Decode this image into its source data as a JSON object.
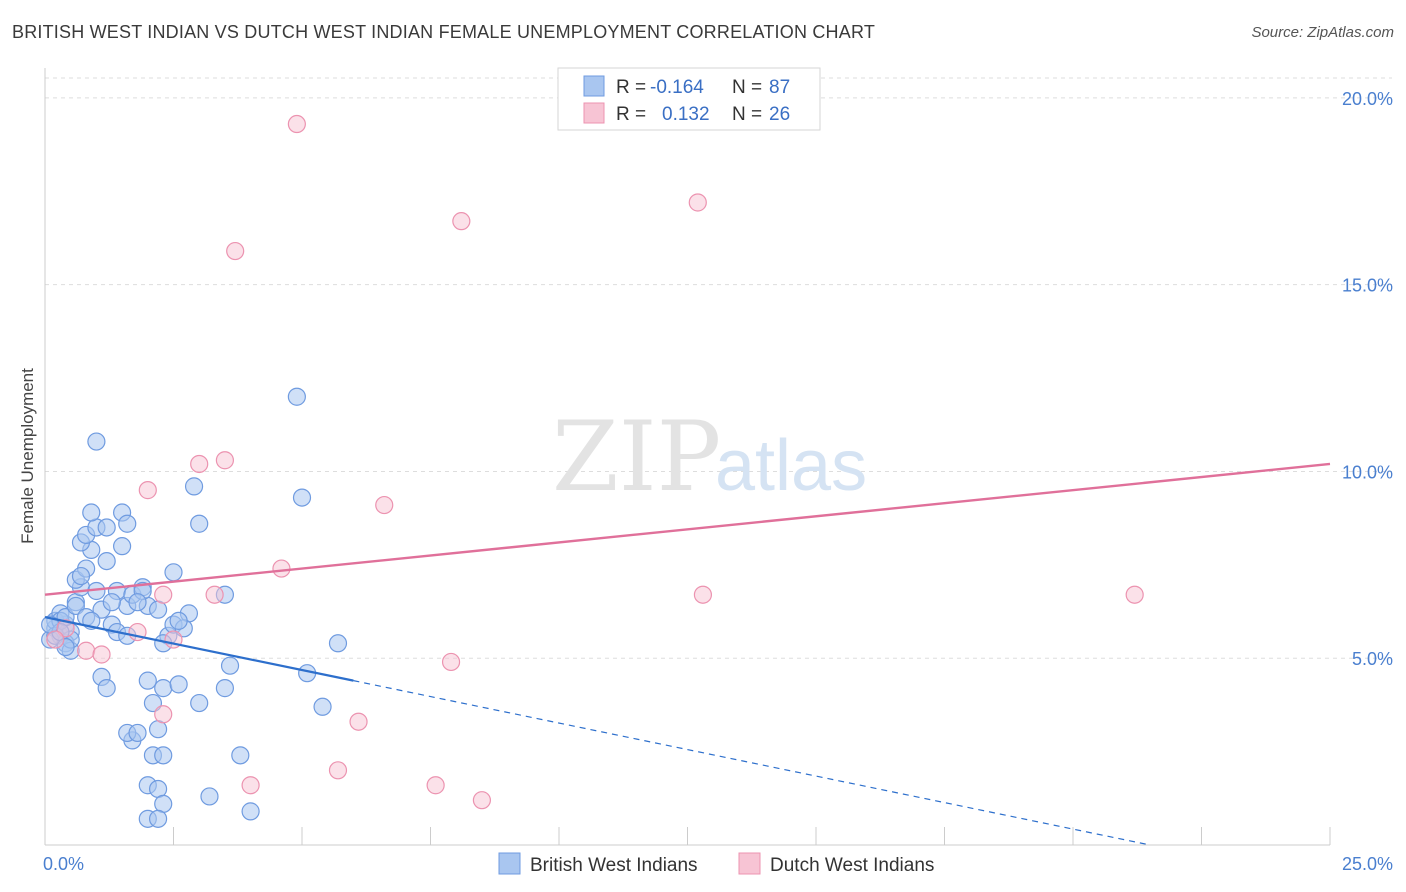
{
  "title": "BRITISH WEST INDIAN VS DUTCH WEST INDIAN FEMALE UNEMPLOYMENT CORRELATION CHART",
  "source": "Source: ZipAtlas.com",
  "watermark": {
    "zip": "ZIP",
    "atlas": "atlas"
  },
  "colors": {
    "blue_fill": "#a9c6f0",
    "blue_stroke": "#6f9be0",
    "blue_line": "#2d6fcc",
    "pink_fill": "#f7c4d4",
    "pink_stroke": "#ec93b0",
    "pink_line": "#e0709a",
    "grid": "#dddddd",
    "tick_text": "#4a7fcf"
  },
  "legend": {
    "rows": [
      {
        "r_label": "R = ",
        "r_value": "-0.164",
        "n_label": "N = ",
        "n_value": "87"
      },
      {
        "r_label": "R = ",
        "r_value": "0.132",
        "n_label": "N = ",
        "n_value": "26"
      }
    ]
  },
  "chart_data": {
    "type": "scatter",
    "title": "BRITISH WEST INDIAN VS DUTCH WEST INDIAN FEMALE UNEMPLOYMENT CORRELATION CHART",
    "xlabel": "",
    "ylabel": "Female Unemployment",
    "xlim": [
      0,
      25
    ],
    "ylim": [
      0,
      20.8
    ],
    "x_tick_labels": [
      {
        "value": 0,
        "label": "0.0%"
      },
      {
        "value": 25,
        "label": "25.0%"
      }
    ],
    "y_tick_labels": [
      {
        "value": 5,
        "label": "5.0%"
      },
      {
        "value": 10,
        "label": "10.0%"
      },
      {
        "value": 15,
        "label": "15.0%"
      },
      {
        "value": 20,
        "label": "20.0%"
      }
    ],
    "series": [
      {
        "name": "British West Indians",
        "r": -0.164,
        "n": 87,
        "trend": {
          "x0": 0,
          "y0": 6.1,
          "x1": 6,
          "y1": 4.4,
          "dash_to_x": 21.5,
          "dash_to_y": 0
        },
        "points": [
          [
            0.2,
            5.8
          ],
          [
            0.3,
            5.6
          ],
          [
            0.1,
            5.5
          ],
          [
            0.4,
            5.9
          ],
          [
            0.2,
            6.0
          ],
          [
            0.5,
            5.7
          ],
          [
            0.3,
            6.2
          ],
          [
            0.6,
            6.5
          ],
          [
            0.4,
            5.4
          ],
          [
            0.5,
            5.2
          ],
          [
            0.7,
            6.9
          ],
          [
            0.6,
            7.1
          ],
          [
            0.8,
            7.4
          ],
          [
            0.9,
            7.9
          ],
          [
            0.7,
            8.1
          ],
          [
            0.8,
            8.3
          ],
          [
            1.0,
            8.5
          ],
          [
            0.9,
            8.9
          ],
          [
            1.2,
            8.5
          ],
          [
            1.5,
            8.9
          ],
          [
            1.6,
            8.6
          ],
          [
            1.5,
            8.0
          ],
          [
            1.2,
            7.6
          ],
          [
            1.4,
            6.8
          ],
          [
            1.1,
            6.3
          ],
          [
            1.3,
            5.9
          ],
          [
            1.6,
            6.4
          ],
          [
            1.7,
            6.7
          ],
          [
            1.9,
            6.9
          ],
          [
            2.0,
            6.4
          ],
          [
            2.2,
            6.3
          ],
          [
            2.5,
            7.3
          ],
          [
            2.4,
            5.6
          ],
          [
            2.5,
            5.9
          ],
          [
            2.3,
            5.4
          ],
          [
            2.8,
            6.2
          ],
          [
            2.7,
            5.8
          ],
          [
            3.0,
            8.6
          ],
          [
            2.9,
            9.6
          ],
          [
            1.0,
            10.8
          ],
          [
            1.1,
            4.5
          ],
          [
            1.2,
            4.2
          ],
          [
            1.4,
            5.7
          ],
          [
            1.6,
            5.6
          ],
          [
            1.9,
            6.8
          ],
          [
            2.0,
            4.4
          ],
          [
            2.1,
            3.8
          ],
          [
            2.3,
            4.2
          ],
          [
            2.6,
            4.3
          ],
          [
            2.2,
            3.1
          ],
          [
            1.7,
            2.8
          ],
          [
            1.6,
            3.0
          ],
          [
            1.8,
            3.0
          ],
          [
            2.1,
            2.4
          ],
          [
            2.3,
            2.4
          ],
          [
            2.0,
            1.6
          ],
          [
            2.2,
            1.5
          ],
          [
            2.3,
            1.1
          ],
          [
            2.0,
            0.7
          ],
          [
            2.2,
            0.7
          ],
          [
            3.0,
            3.8
          ],
          [
            3.2,
            1.3
          ],
          [
            3.5,
            4.2
          ],
          [
            3.6,
            4.8
          ],
          [
            3.5,
            6.7
          ],
          [
            3.8,
            2.4
          ],
          [
            4.0,
            0.9
          ],
          [
            4.9,
            12.0
          ],
          [
            5.0,
            9.3
          ],
          [
            5.1,
            4.6
          ],
          [
            5.4,
            3.7
          ],
          [
            5.7,
            5.4
          ],
          [
            0.3,
            6.0
          ],
          [
            0.2,
            5.6
          ],
          [
            0.4,
            6.1
          ],
          [
            0.6,
            6.4
          ],
          [
            0.8,
            6.1
          ],
          [
            0.5,
            5.5
          ],
          [
            0.3,
            5.7
          ],
          [
            0.1,
            5.9
          ],
          [
            1.3,
            6.5
          ],
          [
            0.9,
            6.0
          ],
          [
            1.8,
            6.5
          ],
          [
            2.6,
            6.0
          ],
          [
            0.4,
            5.3
          ],
          [
            0.7,
            7.2
          ],
          [
            1.0,
            6.8
          ]
        ]
      },
      {
        "name": "Dutch West Indians",
        "r": 0.132,
        "n": 26,
        "trend": {
          "x0": 0,
          "y0": 6.7,
          "x1": 25,
          "y1": 10.2
        },
        "points": [
          [
            4.9,
            19.3
          ],
          [
            8.1,
            16.7
          ],
          [
            12.7,
            17.2
          ],
          [
            3.7,
            15.9
          ],
          [
            3.0,
            10.2
          ],
          [
            3.5,
            10.3
          ],
          [
            2.0,
            9.5
          ],
          [
            6.6,
            9.1
          ],
          [
            4.6,
            7.4
          ],
          [
            2.3,
            6.7
          ],
          [
            3.3,
            6.7
          ],
          [
            12.8,
            6.7
          ],
          [
            21.2,
            6.7
          ],
          [
            1.8,
            5.7
          ],
          [
            2.5,
            5.5
          ],
          [
            0.8,
            5.2
          ],
          [
            1.1,
            5.1
          ],
          [
            7.9,
            4.9
          ],
          [
            2.3,
            3.5
          ],
          [
            6.1,
            3.3
          ],
          [
            4.0,
            1.6
          ],
          [
            5.7,
            2.0
          ],
          [
            7.6,
            1.6
          ],
          [
            8.5,
            1.2
          ],
          [
            0.4,
            5.8
          ],
          [
            0.2,
            5.5
          ]
        ]
      }
    ]
  },
  "bottom_legend": {
    "items": [
      {
        "label": "British West Indians"
      },
      {
        "label": "Dutch West Indians"
      }
    ]
  }
}
